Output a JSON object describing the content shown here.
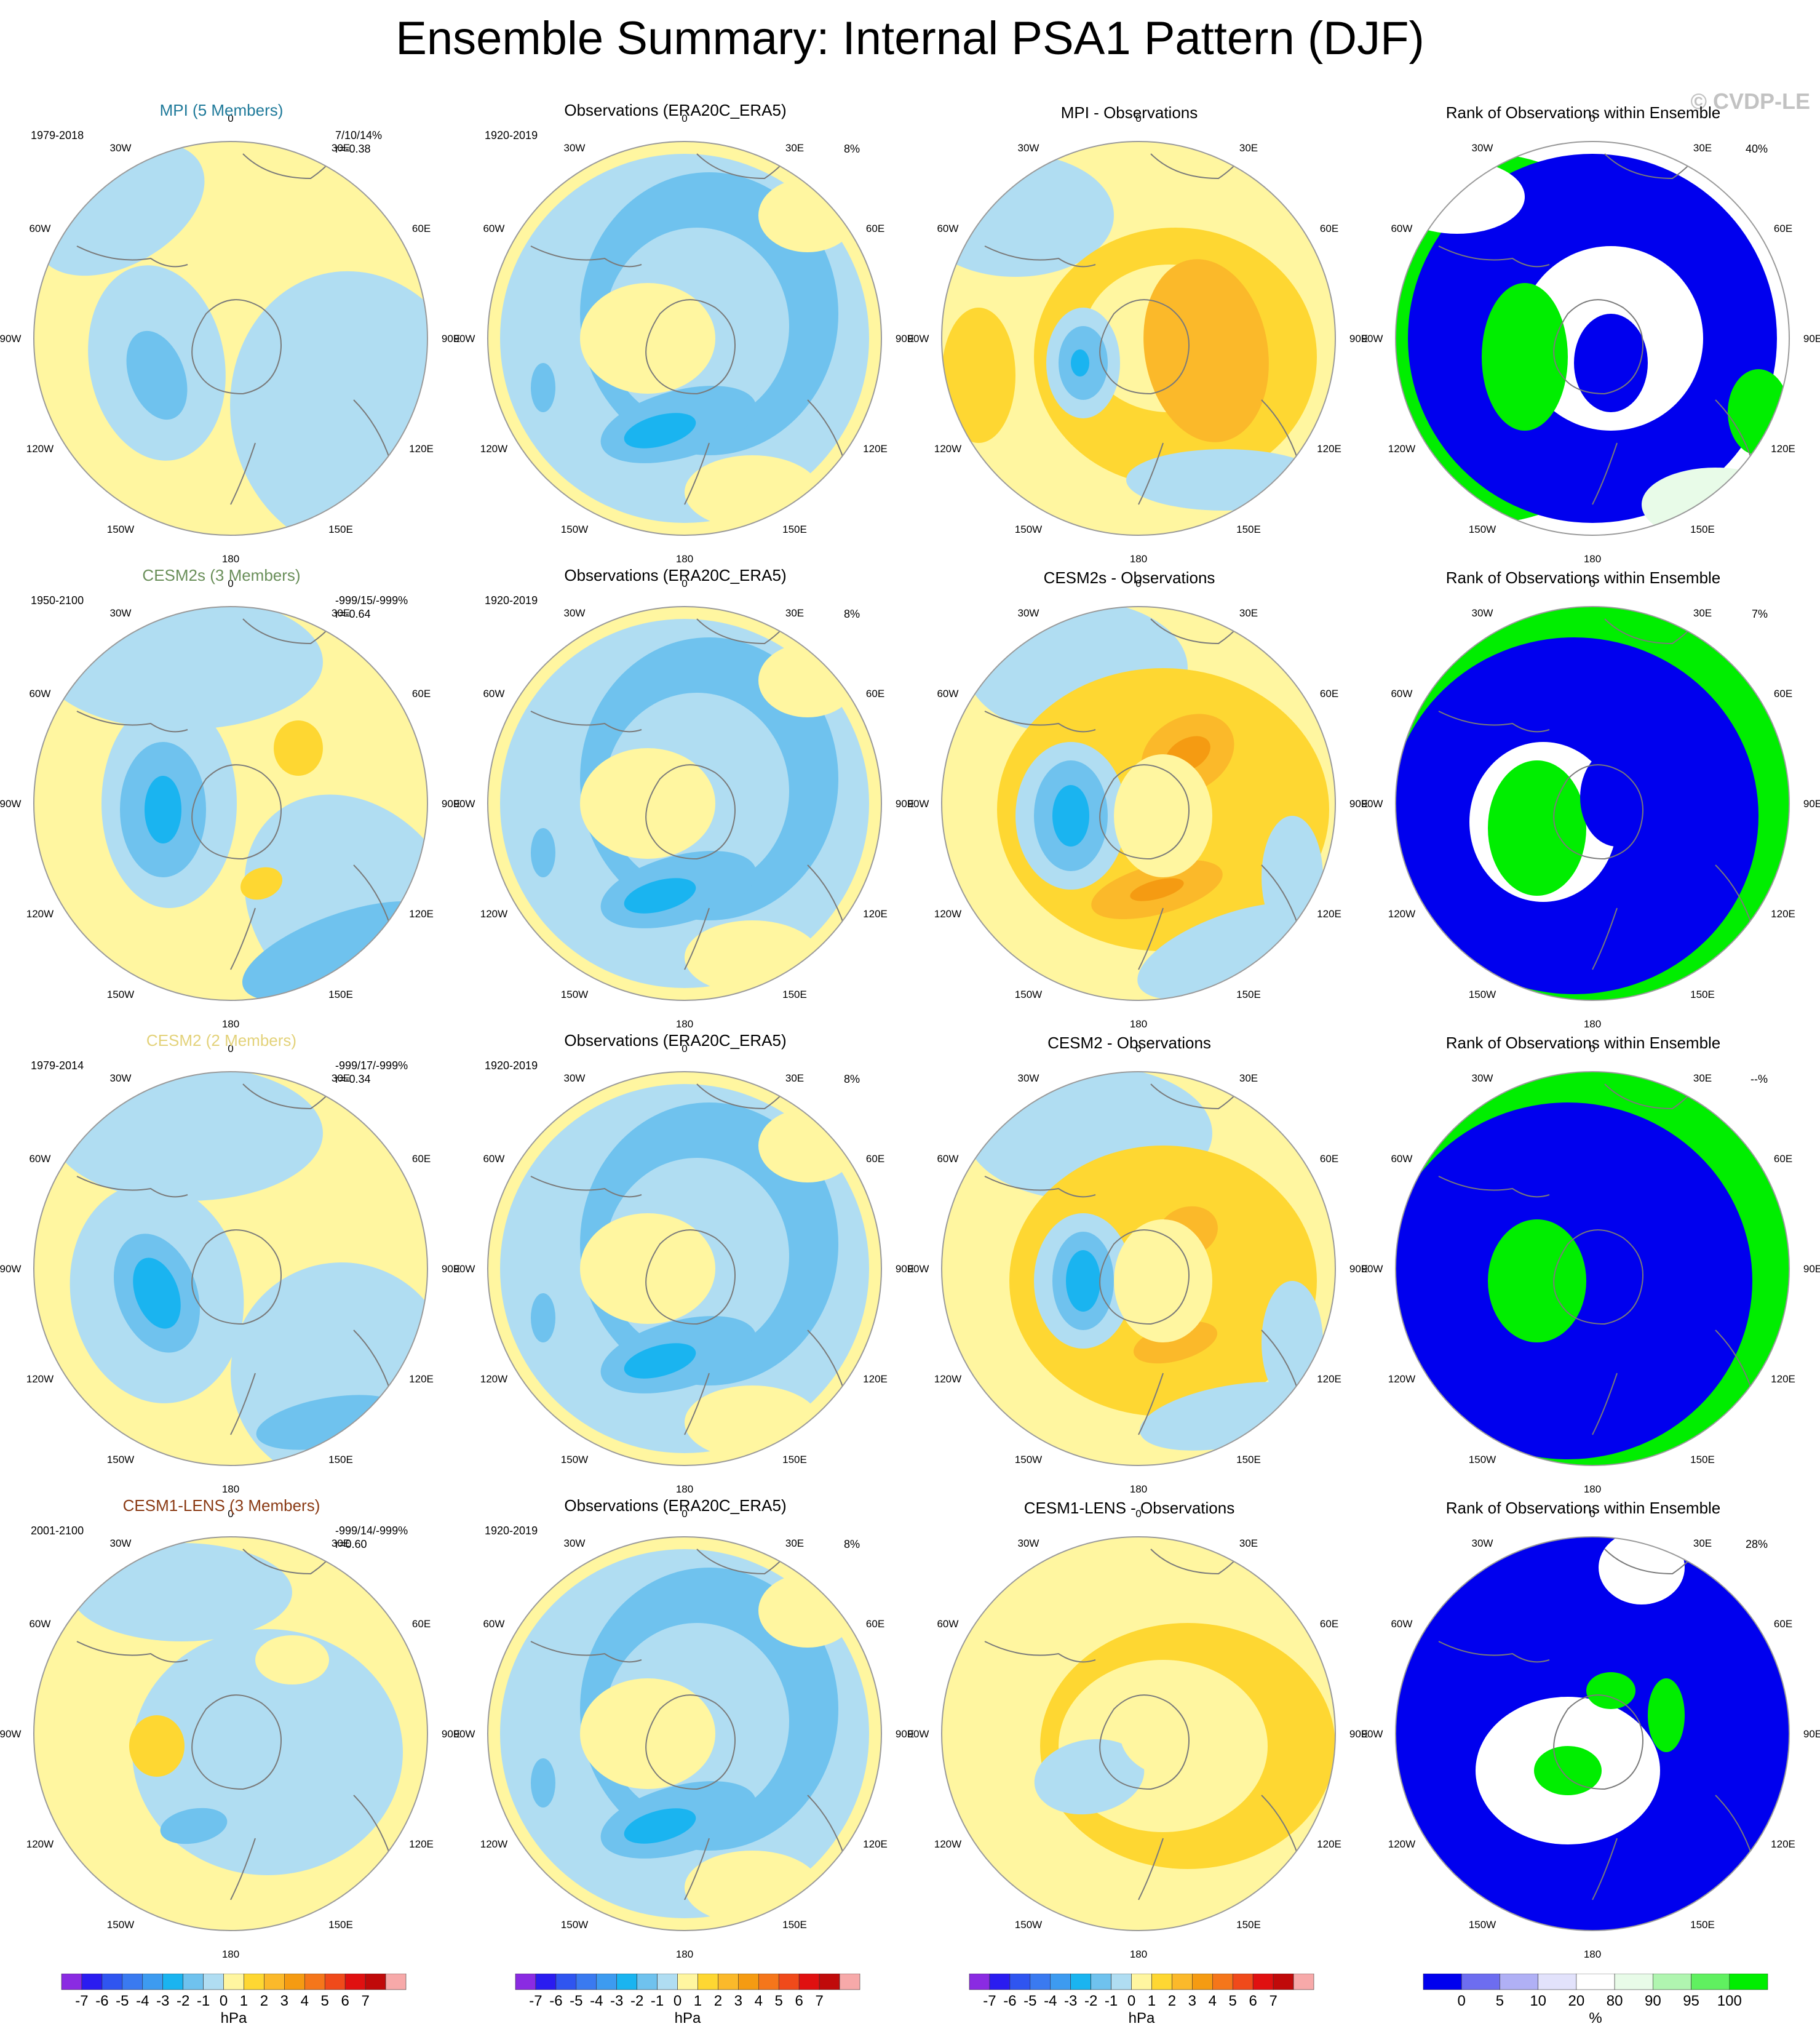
{
  "title": "Ensemble Summary: Internal PSA1 Pattern (DJF)",
  "copyright": "© CVDP-LE",
  "longitude_labels": [
    "0",
    "30E",
    "60E",
    "90E",
    "120E",
    "150E",
    "180",
    "150W",
    "120W",
    "90W",
    "60W",
    "30W"
  ],
  "colors": {
    "pos1": "#fff6a0",
    "pos2": "#fed732",
    "pos3": "#fbb92a",
    "pos4": "#f59b12",
    "neg1": "#b0ddf2",
    "neg2": "#6fc2ee",
    "neg3": "#1ab4f0",
    "neg4": "#1f86f0",
    "rank_low": "#0000ee",
    "rank_high": "#00ee00",
    "rank_mid": "#ffffff",
    "rank_light": "#e8fbe8",
    "coast": "#7a7a7a"
  },
  "rows": [
    {
      "model": {
        "title": "MPI (5 Members)",
        "title_color": "#1f7a9a",
        "period": "1979-2018",
        "stats_line1": "7/10/14%",
        "stats_line2": "r=-0.38"
      },
      "obs": {
        "title": "Observations (ERA20C_ERA5)",
        "period": "1920-2019",
        "pct": "8%"
      },
      "diff": {
        "title": "MPI - Observations"
      },
      "rank": {
        "title": "Rank of Observations within Ensemble",
        "pct": "40%"
      }
    },
    {
      "model": {
        "title": "CESM2s (3 Members)",
        "title_color": "#6a8f5a",
        "period": "1950-2100",
        "stats_line1": "-999/15/-999%",
        "stats_line2": "r=-0.64"
      },
      "obs": {
        "title": "Observations (ERA20C_ERA5)",
        "period": "1920-2019",
        "pct": "8%"
      },
      "diff": {
        "title": "CESM2s - Observations"
      },
      "rank": {
        "title": "Rank of Observations within Ensemble",
        "pct": "7%"
      }
    },
    {
      "model": {
        "title": "CESM2 (2 Members)",
        "title_color": "#e3d27a",
        "period": "1979-2014",
        "stats_line1": "-999/17/-999%",
        "stats_line2": "r=-0.34"
      },
      "obs": {
        "title": "Observations (ERA20C_ERA5)",
        "period": "1920-2019",
        "pct": "8%"
      },
      "diff": {
        "title": "CESM2 - Observations"
      },
      "rank": {
        "title": "Rank of Observations within Ensemble",
        "pct": "--%"
      }
    },
    {
      "model": {
        "title": "CESM1-LENS (3 Members)",
        "title_color": "#8a3a14",
        "period": "2001-2100",
        "stats_line1": "-999/14/-999%",
        "stats_line2": "r=0.60"
      },
      "obs": {
        "title": "Observations (ERA20C_ERA5)",
        "period": "1920-2019",
        "pct": "8%"
      },
      "diff": {
        "title": "CESM1-LENS - Observations"
      },
      "rank": {
        "title": "Rank of Observations within Ensemble",
        "pct": "28%"
      }
    }
  ],
  "hpa_colorbar": {
    "units": "hPa",
    "labels": [
      "-7",
      "-6",
      "-5",
      "-4",
      "-3",
      "-2",
      "-1",
      "0",
      "1",
      "2",
      "3",
      "4",
      "5",
      "6",
      "7"
    ],
    "colors": [
      "#8a2be2",
      "#2a1cf0",
      "#2f55f0",
      "#3a7af0",
      "#3d9bf0",
      "#1ab4f0",
      "#6fc2ee",
      "#b0ddf2",
      "#fff6a0",
      "#fed732",
      "#fbb92a",
      "#f59b12",
      "#f5761a",
      "#f04a1a",
      "#e01010",
      "#c00a0a",
      "#f7a9a9"
    ]
  },
  "rank_colorbar": {
    "units": "%",
    "labels": [
      "0",
      "5",
      "10",
      "20",
      "80",
      "90",
      "95",
      "100"
    ],
    "colors": [
      "#0000ee",
      "#6d6df0",
      "#b0b0f5",
      "#e2e2fb",
      "#ffffff",
      "#e8fbe8",
      "#b0f5b0",
      "#60f060",
      "#00ee00"
    ]
  },
  "chart_data": {
    "type": "heatmap",
    "title": "Ensemble Summary: Internal PSA1 Pattern (DJF)",
    "panels_per_row": [
      "model pattern",
      "Observations (ERA20C_ERA5)",
      "model - Observations",
      "Rank of Observations within Ensemble"
    ],
    "hpa_levels": [
      -7,
      -6,
      -5,
      -4,
      -3,
      -2,
      -1,
      0,
      1,
      2,
      3,
      4,
      5,
      6,
      7
    ],
    "rank_levels": [
      0,
      5,
      10,
      20,
      80,
      90,
      95,
      100
    ],
    "units": [
      "hPa",
      "%"
    ]
  }
}
